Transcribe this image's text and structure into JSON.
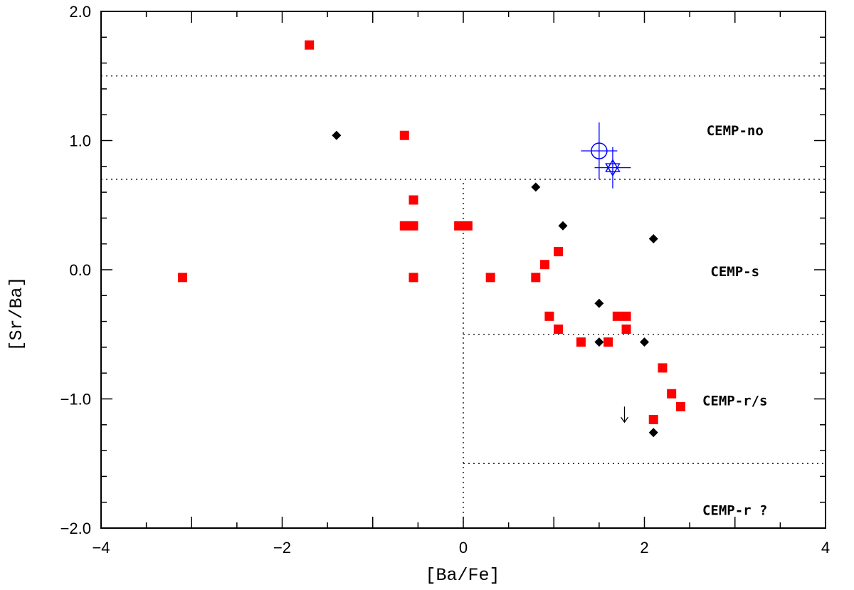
{
  "chart_data": {
    "type": "scatter",
    "xlabel": "[Ba/Fe]",
    "ylabel": "[Sr/Ba]",
    "xlim": [
      -4,
      4
    ],
    "ylim": [
      -2,
      2
    ],
    "x_ticks": [
      -4,
      -2,
      0,
      2,
      4
    ],
    "x_tick_labels": [
      "−4",
      "−2",
      "0",
      "2",
      "4"
    ],
    "y_ticks": [
      -2,
      -1,
      0,
      1,
      2
    ],
    "y_tick_labels": [
      "−2.0",
      "−1.0",
      "0.0",
      "1.0",
      "2.0"
    ],
    "series": [
      {
        "name": "red squares",
        "marker": "square",
        "color": "#ff0000",
        "points": [
          [
            -3.1,
            -0.06
          ],
          [
            -1.7,
            1.74
          ],
          [
            -0.65,
            1.04
          ],
          [
            -0.55,
            0.54
          ],
          [
            -0.65,
            0.34
          ],
          [
            -0.55,
            0.34
          ],
          [
            -0.55,
            -0.06
          ],
          [
            -0.05,
            0.34
          ],
          [
            0.05,
            0.34
          ],
          [
            0.3,
            -0.06
          ],
          [
            0.8,
            -0.06
          ],
          [
            0.9,
            0.04
          ],
          [
            1.05,
            0.14
          ],
          [
            0.95,
            -0.36
          ],
          [
            1.05,
            -0.46
          ],
          [
            1.3,
            -0.56
          ],
          [
            1.6,
            -0.56
          ],
          [
            1.7,
            -0.36
          ],
          [
            1.8,
            -0.36
          ],
          [
            1.8,
            -0.46
          ],
          [
            2.2,
            -0.76
          ],
          [
            2.3,
            -0.96
          ],
          [
            2.4,
            -1.06
          ],
          [
            2.1,
            -1.16
          ]
        ]
      },
      {
        "name": "black diamonds",
        "marker": "diamond",
        "color": "#000000",
        "points": [
          [
            -1.4,
            1.04
          ],
          [
            0.8,
            0.64
          ],
          [
            1.1,
            0.34
          ],
          [
            2.1,
            0.24
          ],
          [
            1.5,
            -0.26
          ],
          [
            1.5,
            -0.56
          ],
          [
            2.0,
            -0.56
          ],
          [
            2.1,
            -1.26
          ]
        ]
      }
    ],
    "highlighted": [
      {
        "marker": "circle",
        "color": "#0000ff",
        "x": 1.5,
        "y": 0.92,
        "xerr": 0.2,
        "yerr": 0.22
      },
      {
        "marker": "star",
        "color": "#0000ff",
        "x": 1.65,
        "y": 0.79,
        "xerr": 0.2,
        "yerr": 0.16
      }
    ],
    "upper_limits": [
      {
        "x": 1.78,
        "y": -1.12
      }
    ],
    "guide_lines": [
      {
        "type": "horizontal",
        "y": 1.5,
        "x_from": -4,
        "x_to": 4
      },
      {
        "type": "horizontal",
        "y": 0.7,
        "x_from": -4,
        "x_to": 4
      },
      {
        "type": "horizontal",
        "y": -0.5,
        "x_from": 0,
        "x_to": 4
      },
      {
        "type": "horizontal",
        "y": -1.5,
        "x_from": 0,
        "x_to": 4
      },
      {
        "type": "vertical",
        "x": 0,
        "y_from": -2,
        "y_to": 0.7
      }
    ],
    "region_labels": [
      {
        "text": "CEMP-no",
        "x": 3.0,
        "y": 1.08
      },
      {
        "text": "CEMP-s",
        "x": 3.0,
        "y": -0.01
      },
      {
        "text": "CEMP-r/s",
        "x": 3.0,
        "y": -1.01
      },
      {
        "text": "CEMP-r ?",
        "x": 3.0,
        "y": -1.86
      }
    ],
    "grid": false,
    "legend": "none"
  }
}
